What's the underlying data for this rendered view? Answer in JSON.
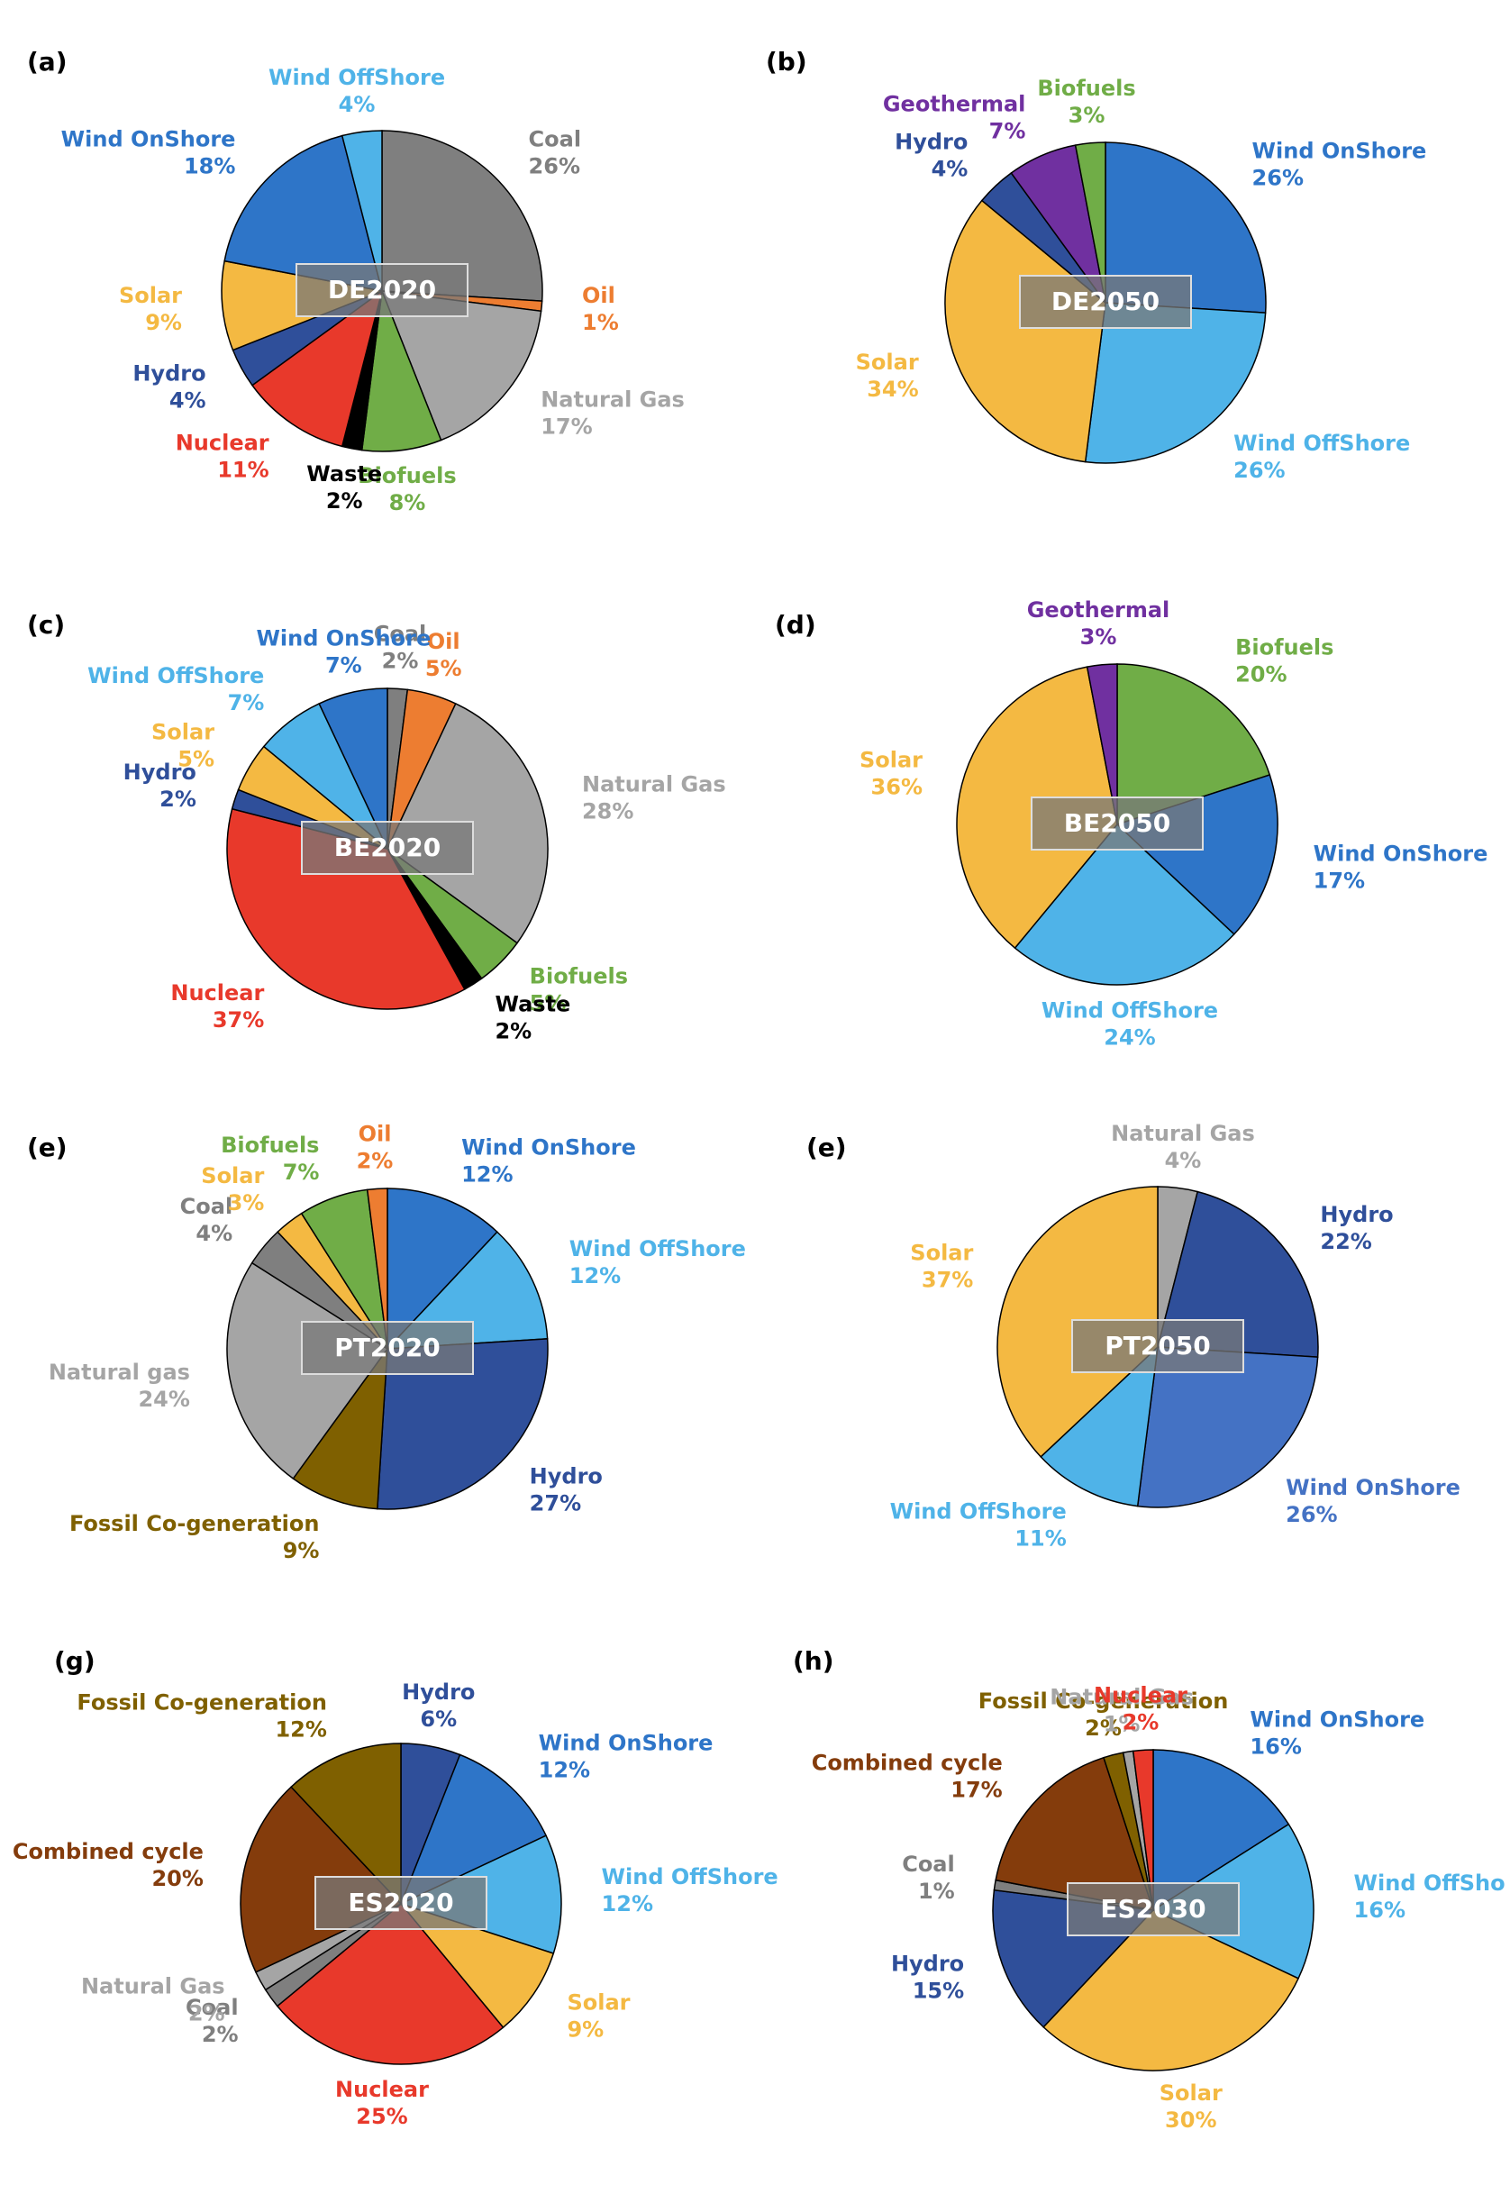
{
  "chart_data": [
    {
      "type": "pie",
      "label": "(a)",
      "title": "DE2020",
      "categories": [
        "Coal",
        "Oil",
        "Natural Gas",
        "Biofuels",
        "Waste",
        "Nuclear",
        "Hydro",
        "Solar",
        "Wind OnShore",
        "Wind OffShore"
      ],
      "values": [
        26,
        1,
        17,
        8,
        2,
        11,
        4,
        9,
        18,
        4
      ],
      "value_labels": [
        "26%",
        "1%",
        "17%",
        "8%",
        "2%",
        "11%",
        "4%",
        "9%",
        "18%",
        "4%"
      ],
      "colors": [
        "#7f7f7f",
        "#ed7d31",
        "#a5a5a5",
        "#70ad47",
        "#000000",
        "#e8392b",
        "#2f4f9a",
        "#f4b942",
        "#2e75c8",
        "#4fb3e8"
      ]
    },
    {
      "type": "pie",
      "label": "(b)",
      "title": "DE2050",
      "categories": [
        "Wind OnShore",
        "Wind OffShore",
        "Solar",
        "Hydro",
        "Geothermal",
        "Biofuels"
      ],
      "values": [
        26,
        26,
        34,
        4,
        7,
        3
      ],
      "value_labels": [
        "26%",
        "26%",
        "34%",
        "4%",
        "7%",
        "3%"
      ],
      "colors": [
        "#2e75c8",
        "#4fb3e8",
        "#f4b942",
        "#2f4f9a",
        "#7030a0",
        "#70ad47"
      ]
    },
    {
      "type": "pie",
      "label": "(c)",
      "title": "BE2020",
      "categories": [
        "Coal",
        "Oil",
        "Natural Gas",
        "Biofuels",
        "Waste",
        "Nuclear",
        "Hydro",
        "Solar",
        "Wind OffShore",
        "Wind OnShore"
      ],
      "values": [
        2,
        5,
        28,
        5,
        2,
        37,
        2,
        5,
        7,
        7
      ],
      "value_labels": [
        "2%",
        "5%",
        "28%",
        "5%",
        "2%",
        "37%",
        "2%",
        "5%",
        "7%",
        "7%"
      ],
      "colors": [
        "#7f7f7f",
        "#ed7d31",
        "#a5a5a5",
        "#70ad47",
        "#000000",
        "#e8392b",
        "#2f4f9a",
        "#f4b942",
        "#4fb3e8",
        "#2e75c8"
      ]
    },
    {
      "type": "pie",
      "label": "(d)",
      "title": "BE2050",
      "categories": [
        "Biofuels",
        "Wind OnShore",
        "Wind OffShore",
        "Solar",
        "Geothermal"
      ],
      "values": [
        20,
        17,
        24,
        36,
        3
      ],
      "value_labels": [
        "20%",
        "17%",
        "24%",
        "36%",
        "3%"
      ],
      "colors": [
        "#70ad47",
        "#2e75c8",
        "#4fb3e8",
        "#f4b942",
        "#7030a0"
      ]
    },
    {
      "type": "pie",
      "label": "(e)",
      "title": "PT2020",
      "categories": [
        "Wind OnShore",
        "Wind OffShore",
        "Hydro",
        "Fossil Co-generation",
        "Natural gas",
        "Coal",
        "Solar",
        "Biofuels",
        "Oil"
      ],
      "values": [
        12,
        12,
        27,
        9,
        24,
        4,
        3,
        7,
        2
      ],
      "value_labels": [
        "12%",
        "12%",
        "27%",
        "9%",
        "24%",
        "4%",
        "3%",
        "7%",
        "2%"
      ],
      "colors": [
        "#2e75c8",
        "#4fb3e8",
        "#2f4f9a",
        "#7f6000",
        "#a5a5a5",
        "#7f7f7f",
        "#f4b942",
        "#70ad47",
        "#ed7d31"
      ]
    },
    {
      "type": "pie",
      "label": "(e)",
      "title": "PT2050",
      "categories": [
        "Natural Gas",
        "Hydro",
        "Wind OnShore",
        "Wind OffShore",
        "Solar"
      ],
      "values": [
        4,
        22,
        26,
        11,
        37
      ],
      "value_labels": [
        "4%",
        "22%",
        "26%",
        "11%",
        "37%"
      ],
      "colors": [
        "#a5a5a5",
        "#2f4f9a",
        "#4472c4",
        "#4fb3e8",
        "#f4b942"
      ]
    },
    {
      "type": "pie",
      "label": "(g)",
      "title": "ES2020",
      "categories": [
        "Hydro",
        "Wind OnShore",
        "Wind OffShore",
        "Solar",
        "Nuclear",
        "Coal",
        "Natural Gas",
        "Combined cycle",
        "Fossil Co-generation"
      ],
      "values": [
        6,
        12,
        12,
        9,
        25,
        2,
        2,
        20,
        12
      ],
      "value_labels": [
        "6%",
        "12%",
        "12%",
        "9%",
        "25%",
        "2%",
        "2%",
        "20%",
        "12%"
      ],
      "colors": [
        "#2f4f9a",
        "#2e75c8",
        "#4fb3e8",
        "#f4b942",
        "#e8392b",
        "#7f7f7f",
        "#a5a5a5",
        "#843c0c",
        "#7f6000"
      ]
    },
    {
      "type": "pie",
      "label": "(h)",
      "title": "ES2030",
      "categories": [
        "Wind OnShore",
        "Wind OffSho",
        "Solar",
        "Hydro",
        "Coal",
        "Combined cycle",
        "Fossil Co-generation",
        "Natural Gas",
        "Nuclear"
      ],
      "values": [
        16,
        16,
        30,
        15,
        1,
        17,
        2,
        1,
        2
      ],
      "value_labels": [
        "16%",
        "16%",
        "30%",
        "15%",
        "1%",
        "17%",
        "2%",
        "1%",
        "2%"
      ],
      "colors": [
        "#2e75c8",
        "#4fb3e8",
        "#f4b942",
        "#2f4f9a",
        "#7f7f7f",
        "#843c0c",
        "#7f6000",
        "#a5a5a5",
        "#e8392b"
      ]
    }
  ]
}
